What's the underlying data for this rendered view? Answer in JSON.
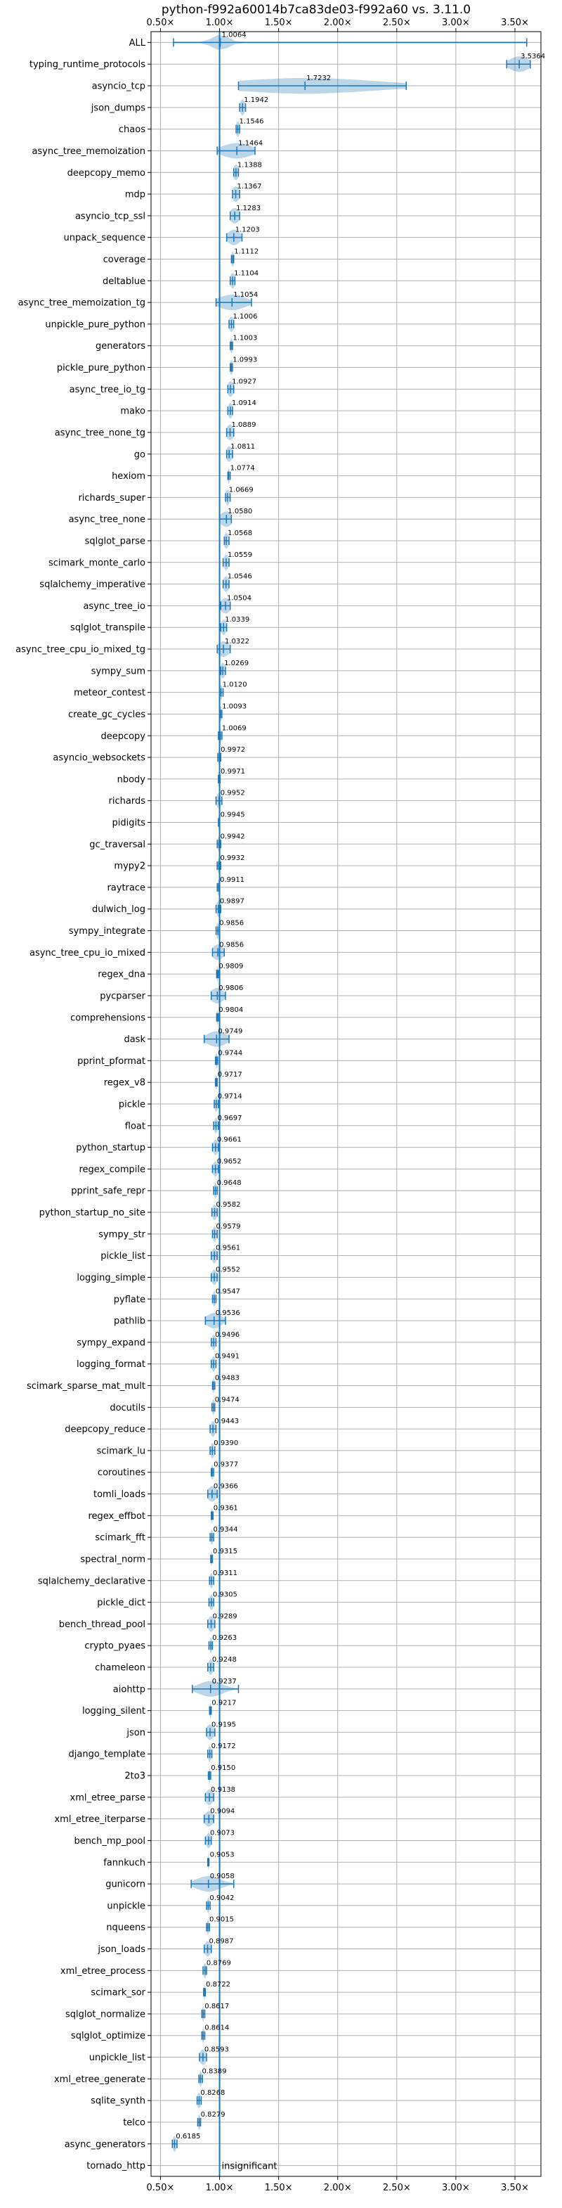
{
  "chart_data": {
    "type": "violin",
    "title": "python-f992a60014b7ca83de03-f992a60 vs. 3.11.0",
    "x_ticks": [
      0.5,
      1.0,
      1.5,
      2.0,
      2.5,
      3.0,
      3.5
    ],
    "x_tick_labels": [
      "0.50×",
      "1.00×",
      "1.50×",
      "2.00×",
      "2.50×",
      "3.00×",
      "3.50×"
    ],
    "xlim": [
      0.42,
      3.72
    ],
    "reference_line": 1.0,
    "grid": true,
    "benchmarks": [
      {
        "name": "ALL",
        "value": 1.0064,
        "label": "1.0064",
        "min": 0.61,
        "max": 3.6,
        "spread": 0.07
      },
      {
        "name": "typing_runtime_protocols",
        "value": 3.5364,
        "label": "3.5364",
        "min": 3.43,
        "max": 3.63,
        "spread": 0.08
      },
      {
        "name": "asyncio_tcp",
        "value": 1.7232,
        "label": "1.7232",
        "min": 1.16,
        "max": 2.58,
        "spread": 0.6
      },
      {
        "name": "json_dumps",
        "value": 1.1942,
        "label": "1.1942",
        "min": 1.17,
        "max": 1.22,
        "spread": 0.02
      },
      {
        "name": "chaos",
        "value": 1.1546,
        "label": "1.1546",
        "min": 1.14,
        "max": 1.17,
        "spread": 0.015
      },
      {
        "name": "async_tree_memoization",
        "value": 1.1464,
        "label": "1.1464",
        "min": 0.98,
        "max": 1.3,
        "spread": 0.12
      },
      {
        "name": "deepcopy_memo",
        "value": 1.1388,
        "label": "1.1388",
        "min": 1.12,
        "max": 1.16,
        "spread": 0.02
      },
      {
        "name": "mdp",
        "value": 1.1367,
        "label": "1.1367",
        "min": 1.11,
        "max": 1.17,
        "spread": 0.03
      },
      {
        "name": "asyncio_tcp_ssl",
        "value": 1.1283,
        "label": "1.1283",
        "min": 1.09,
        "max": 1.17,
        "spread": 0.04
      },
      {
        "name": "unpack_sequence",
        "value": 1.1203,
        "label": "1.1203",
        "min": 1.06,
        "max": 1.19,
        "spread": 0.05
      },
      {
        "name": "coverage",
        "value": 1.1112,
        "label": "1.1112",
        "min": 1.1,
        "max": 1.12,
        "spread": 0.01
      },
      {
        "name": "deltablue",
        "value": 1.1104,
        "label": "1.1104",
        "min": 1.09,
        "max": 1.13,
        "spread": 0.02
      },
      {
        "name": "async_tree_memoization_tg",
        "value": 1.1054,
        "label": "1.1054",
        "min": 0.97,
        "max": 1.27,
        "spread": 0.11
      },
      {
        "name": "unpickle_pure_python",
        "value": 1.1006,
        "label": "1.1006",
        "min": 1.08,
        "max": 1.12,
        "spread": 0.02
      },
      {
        "name": "generators",
        "value": 1.1003,
        "label": "1.1003",
        "min": 1.09,
        "max": 1.11,
        "spread": 0.01
      },
      {
        "name": "pickle_pure_python",
        "value": 1.0993,
        "label": "1.0993",
        "min": 1.09,
        "max": 1.11,
        "spread": 0.01
      },
      {
        "name": "async_tree_io_tg",
        "value": 1.0927,
        "label": "1.0927",
        "min": 1.07,
        "max": 1.12,
        "spread": 0.025
      },
      {
        "name": "mako",
        "value": 1.0914,
        "label": "1.0914",
        "min": 1.07,
        "max": 1.11,
        "spread": 0.02
      },
      {
        "name": "async_tree_none_tg",
        "value": 1.0889,
        "label": "1.0889",
        "min": 1.06,
        "max": 1.12,
        "spread": 0.03
      },
      {
        "name": "go",
        "value": 1.0811,
        "label": "1.0811",
        "min": 1.06,
        "max": 1.11,
        "spread": 0.025
      },
      {
        "name": "hexiom",
        "value": 1.0774,
        "label": "1.0774",
        "min": 1.07,
        "max": 1.09,
        "spread": 0.008
      },
      {
        "name": "richards_super",
        "value": 1.0669,
        "label": "1.0669",
        "min": 1.05,
        "max": 1.09,
        "spread": 0.02
      },
      {
        "name": "async_tree_none",
        "value": 1.058,
        "label": "1.0580",
        "min": 1.0,
        "max": 1.1,
        "spread": 0.05
      },
      {
        "name": "sqlglot_parse",
        "value": 1.0568,
        "label": "1.0568",
        "min": 1.04,
        "max": 1.08,
        "spread": 0.02
      },
      {
        "name": "scimark_monte_carlo",
        "value": 1.0559,
        "label": "1.0559",
        "min": 1.03,
        "max": 1.08,
        "spread": 0.02
      },
      {
        "name": "sqlalchemy_imperative",
        "value": 1.0546,
        "label": "1.0546",
        "min": 1.03,
        "max": 1.08,
        "spread": 0.025
      },
      {
        "name": "async_tree_io",
        "value": 1.0504,
        "label": "1.0504",
        "min": 1.01,
        "max": 1.09,
        "spread": 0.04
      },
      {
        "name": "sqlglot_transpile",
        "value": 1.0339,
        "label": "1.0339",
        "min": 1.01,
        "max": 1.06,
        "spread": 0.02
      },
      {
        "name": "async_tree_cpu_io_mixed_tg",
        "value": 1.0322,
        "label": "1.0322",
        "min": 0.98,
        "max": 1.09,
        "spread": 0.05
      },
      {
        "name": "sympy_sum",
        "value": 1.0269,
        "label": "1.0269",
        "min": 1.01,
        "max": 1.05,
        "spread": 0.02
      },
      {
        "name": "meteor_contest",
        "value": 1.012,
        "label": "1.0120",
        "min": 1.0,
        "max": 1.03,
        "spread": 0.012
      },
      {
        "name": "create_gc_cycles",
        "value": 1.0093,
        "label": "1.0093",
        "min": 1.0,
        "max": 1.02,
        "spread": 0.01
      },
      {
        "name": "deepcopy",
        "value": 1.0069,
        "label": "1.0069",
        "min": 0.99,
        "max": 1.02,
        "spread": 0.01
      },
      {
        "name": "asyncio_websockets",
        "value": 0.9972,
        "label": "0.9972",
        "min": 0.985,
        "max": 1.01,
        "spread": 0.01
      },
      {
        "name": "nbody",
        "value": 0.9971,
        "label": "0.9971",
        "min": 0.99,
        "max": 1.005,
        "spread": 0.006
      },
      {
        "name": "richards",
        "value": 0.9952,
        "label": "0.9952",
        "min": 0.97,
        "max": 1.02,
        "spread": 0.02
      },
      {
        "name": "pidigits",
        "value": 0.9945,
        "label": "0.9945",
        "min": 0.99,
        "max": 1.0,
        "spread": 0.004
      },
      {
        "name": "gc_traversal",
        "value": 0.9942,
        "label": "0.9942",
        "min": 0.98,
        "max": 1.01,
        "spread": 0.01
      },
      {
        "name": "mypy2",
        "value": 0.9932,
        "label": "0.9932",
        "min": 0.98,
        "max": 1.01,
        "spread": 0.01
      },
      {
        "name": "raytrace",
        "value": 0.9911,
        "label": "0.9911",
        "min": 0.98,
        "max": 1.0,
        "spread": 0.008
      },
      {
        "name": "dulwich_log",
        "value": 0.9897,
        "label": "0.9897",
        "min": 0.97,
        "max": 1.01,
        "spread": 0.015
      },
      {
        "name": "sympy_integrate",
        "value": 0.9856,
        "label": "0.9856",
        "min": 0.97,
        "max": 1.0,
        "spread": 0.012
      },
      {
        "name": "async_tree_cpu_io_mixed",
        "value": 0.9856,
        "label": "0.9856",
        "min": 0.94,
        "max": 1.04,
        "spread": 0.045
      },
      {
        "name": "regex_dna",
        "value": 0.9809,
        "label": "0.9809",
        "min": 0.975,
        "max": 0.99,
        "spread": 0.006
      },
      {
        "name": "pycparser",
        "value": 0.9806,
        "label": "0.9806",
        "min": 0.93,
        "max": 1.05,
        "spread": 0.05
      },
      {
        "name": "comprehensions",
        "value": 0.9804,
        "label": "0.9804",
        "min": 0.975,
        "max": 0.99,
        "spread": 0.005
      },
      {
        "name": "dask",
        "value": 0.9749,
        "label": "0.9749",
        "min": 0.87,
        "max": 1.08,
        "spread": 0.08
      },
      {
        "name": "pprint_pformat",
        "value": 0.9744,
        "label": "0.9744",
        "min": 0.965,
        "max": 0.985,
        "spread": 0.008
      },
      {
        "name": "regex_v8",
        "value": 0.9717,
        "label": "0.9717",
        "min": 0.965,
        "max": 0.98,
        "spread": 0.006
      },
      {
        "name": "pickle",
        "value": 0.9714,
        "label": "0.9714",
        "min": 0.955,
        "max": 0.99,
        "spread": 0.015
      },
      {
        "name": "float",
        "value": 0.9697,
        "label": "0.9697",
        "min": 0.95,
        "max": 0.99,
        "spread": 0.015
      },
      {
        "name": "python_startup",
        "value": 0.9661,
        "label": "0.9661",
        "min": 0.94,
        "max": 0.99,
        "spread": 0.02
      },
      {
        "name": "regex_compile",
        "value": 0.9652,
        "label": "0.9652",
        "min": 0.94,
        "max": 0.99,
        "spread": 0.02
      },
      {
        "name": "pprint_safe_repr",
        "value": 0.9648,
        "label": "0.9648",
        "min": 0.95,
        "max": 0.98,
        "spread": 0.012
      },
      {
        "name": "python_startup_no_site",
        "value": 0.9582,
        "label": "0.9582",
        "min": 0.935,
        "max": 0.98,
        "spread": 0.02
      },
      {
        "name": "sympy_str",
        "value": 0.9579,
        "label": "0.9579",
        "min": 0.94,
        "max": 0.98,
        "spread": 0.015
      },
      {
        "name": "pickle_list",
        "value": 0.9561,
        "label": "0.9561",
        "min": 0.93,
        "max": 0.98,
        "spread": 0.02
      },
      {
        "name": "logging_simple",
        "value": 0.9552,
        "label": "0.9552",
        "min": 0.93,
        "max": 0.98,
        "spread": 0.02
      },
      {
        "name": "pyflate",
        "value": 0.9547,
        "label": "0.9547",
        "min": 0.94,
        "max": 0.97,
        "spread": 0.012
      },
      {
        "name": "pathlib",
        "value": 0.9536,
        "label": "0.9536",
        "min": 0.88,
        "max": 1.05,
        "spread": 0.06
      },
      {
        "name": "sympy_expand",
        "value": 0.9496,
        "label": "0.9496",
        "min": 0.93,
        "max": 0.97,
        "spread": 0.015
      },
      {
        "name": "logging_format",
        "value": 0.9491,
        "label": "0.9491",
        "min": 0.93,
        "max": 0.97,
        "spread": 0.015
      },
      {
        "name": "scimark_sparse_mat_mult",
        "value": 0.9483,
        "label": "0.9483",
        "min": 0.94,
        "max": 0.96,
        "spread": 0.008
      },
      {
        "name": "docutils",
        "value": 0.9474,
        "label": "0.9474",
        "min": 0.935,
        "max": 0.96,
        "spread": 0.01
      },
      {
        "name": "deepcopy_reduce",
        "value": 0.9443,
        "label": "0.9443",
        "min": 0.92,
        "max": 0.97,
        "spread": 0.02
      },
      {
        "name": "scimark_lu",
        "value": 0.939,
        "label": "0.9390",
        "min": 0.92,
        "max": 0.96,
        "spread": 0.015
      },
      {
        "name": "coroutines",
        "value": 0.9377,
        "label": "0.9377",
        "min": 0.93,
        "max": 0.95,
        "spread": 0.008
      },
      {
        "name": "tomli_loads",
        "value": 0.9366,
        "label": "0.9366",
        "min": 0.9,
        "max": 0.98,
        "spread": 0.035
      },
      {
        "name": "regex_effbot",
        "value": 0.9361,
        "label": "0.9361",
        "min": 0.93,
        "max": 0.945,
        "spread": 0.005
      },
      {
        "name": "scimark_fft",
        "value": 0.9344,
        "label": "0.9344",
        "min": 0.92,
        "max": 0.95,
        "spread": 0.01
      },
      {
        "name": "spectral_norm",
        "value": 0.9315,
        "label": "0.9315",
        "min": 0.925,
        "max": 0.94,
        "spread": 0.005
      },
      {
        "name": "sqlalchemy_declarative",
        "value": 0.9311,
        "label": "0.9311",
        "min": 0.915,
        "max": 0.95,
        "spread": 0.012
      },
      {
        "name": "pickle_dict",
        "value": 0.9305,
        "label": "0.9305",
        "min": 0.91,
        "max": 0.95,
        "spread": 0.015
      },
      {
        "name": "bench_thread_pool",
        "value": 0.9289,
        "label": "0.9289",
        "min": 0.9,
        "max": 0.96,
        "spread": 0.025
      },
      {
        "name": "crypto_pyaes",
        "value": 0.9263,
        "label": "0.9263",
        "min": 0.91,
        "max": 0.94,
        "spread": 0.01
      },
      {
        "name": "chameleon",
        "value": 0.9248,
        "label": "0.9248",
        "min": 0.9,
        "max": 0.95,
        "spread": 0.02
      },
      {
        "name": "aiohttp",
        "value": 0.9237,
        "label": "0.9237",
        "min": 0.77,
        "max": 1.16,
        "spread": 0.1
      },
      {
        "name": "logging_silent",
        "value": 0.9217,
        "label": "0.9217",
        "min": 0.915,
        "max": 0.93,
        "spread": 0.005
      },
      {
        "name": "json",
        "value": 0.9195,
        "label": "0.9195",
        "min": 0.89,
        "max": 0.96,
        "spread": 0.03
      },
      {
        "name": "django_template",
        "value": 0.9172,
        "label": "0.9172",
        "min": 0.9,
        "max": 0.935,
        "spread": 0.012
      },
      {
        "name": "2to3",
        "value": 0.915,
        "label": "0.9150",
        "min": 0.905,
        "max": 0.925,
        "spread": 0.006
      },
      {
        "name": "xml_etree_parse",
        "value": 0.9138,
        "label": "0.9138",
        "min": 0.88,
        "max": 0.95,
        "spread": 0.03
      },
      {
        "name": "xml_etree_iterparse",
        "value": 0.9094,
        "label": "0.9094",
        "min": 0.87,
        "max": 0.95,
        "spread": 0.035
      },
      {
        "name": "bench_mp_pool",
        "value": 0.9073,
        "label": "0.9073",
        "min": 0.88,
        "max": 0.93,
        "spread": 0.02
      },
      {
        "name": "fannkuch",
        "value": 0.9053,
        "label": "0.9053",
        "min": 0.9,
        "max": 0.91,
        "spread": 0.004
      },
      {
        "name": "gunicorn",
        "value": 0.9058,
        "label": "0.9058",
        "min": 0.76,
        "max": 1.12,
        "spread": 0.1
      },
      {
        "name": "unpickle",
        "value": 0.9042,
        "label": "0.9042",
        "min": 0.89,
        "max": 0.92,
        "spread": 0.01
      },
      {
        "name": "nqueens",
        "value": 0.9015,
        "label": "0.9015",
        "min": 0.89,
        "max": 0.915,
        "spread": 0.008
      },
      {
        "name": "json_loads",
        "value": 0.8987,
        "label": "0.8987",
        "min": 0.87,
        "max": 0.93,
        "spread": 0.025
      },
      {
        "name": "xml_etree_process",
        "value": 0.8769,
        "label": "0.8769",
        "min": 0.86,
        "max": 0.89,
        "spread": 0.012
      },
      {
        "name": "scimark_sor",
        "value": 0.8722,
        "label": "0.8722",
        "min": 0.865,
        "max": 0.88,
        "spread": 0.005
      },
      {
        "name": "sqlglot_normalize",
        "value": 0.8617,
        "label": "0.8617",
        "min": 0.85,
        "max": 0.875,
        "spread": 0.008
      },
      {
        "name": "sqlglot_optimize",
        "value": 0.8614,
        "label": "0.8614",
        "min": 0.85,
        "max": 0.875,
        "spread": 0.008
      },
      {
        "name": "unpickle_list",
        "value": 0.8593,
        "label": "0.8593",
        "min": 0.83,
        "max": 0.89,
        "spread": 0.025
      },
      {
        "name": "xml_etree_generate",
        "value": 0.8389,
        "label": "0.8389",
        "min": 0.825,
        "max": 0.855,
        "spread": 0.01
      },
      {
        "name": "sqlite_synth",
        "value": 0.8268,
        "label": "0.8268",
        "min": 0.81,
        "max": 0.845,
        "spread": 0.015
      },
      {
        "name": "telco",
        "value": 0.8279,
        "label": "0.8279",
        "min": 0.815,
        "max": 0.84,
        "spread": 0.01
      },
      {
        "name": "async_generators",
        "value": 0.6185,
        "label": "0.6185",
        "min": 0.6,
        "max": 0.64,
        "spread": 0.015
      },
      {
        "name": "tornado_http",
        "value": null,
        "label": "",
        "note": "insignificant"
      }
    ]
  }
}
